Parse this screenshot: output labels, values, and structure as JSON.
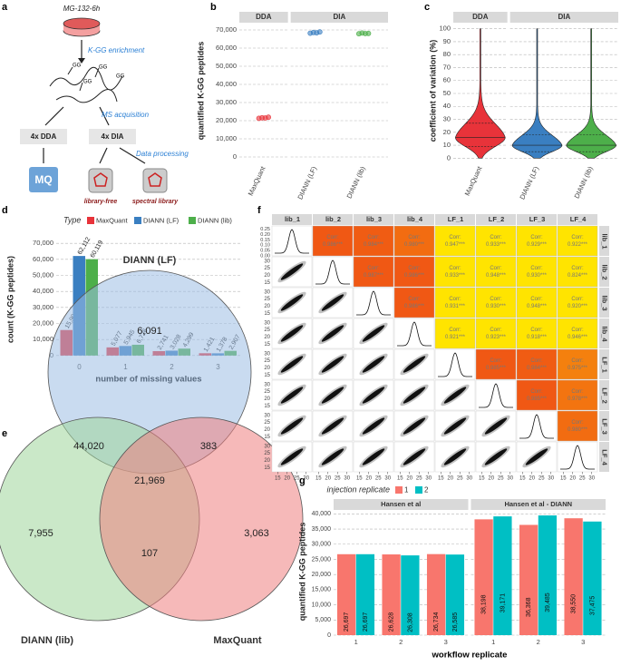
{
  "panel_labels": [
    "a",
    "b",
    "c",
    "d",
    "e",
    "f",
    "g"
  ],
  "workflow": {
    "sample": "MG-132-6h",
    "enrichment": "K-GG enrichment",
    "gg_tag": "GG",
    "acquisition": "MS acquisition",
    "dda": "4x DDA",
    "dia": "4x DIA",
    "processing": "Data processing",
    "mq_logo": "MQ",
    "library_free": "library-free",
    "spectral_library": "spectral library"
  },
  "chart_data": [
    {
      "type": "dot",
      "y_label": "quantified K-GG peptides",
      "ylim": [
        -3500,
        73500
      ],
      "yticks": [
        0,
        {
          "value": 10000,
          "label": "10,000"
        },
        {
          "value": 20000,
          "label": "20,000"
        },
        {
          "value": 30000,
          "label": "30,000"
        },
        {
          "value": 40000,
          "label": "40,000"
        },
        {
          "value": 50000,
          "label": "50,000"
        },
        {
          "value": 60000,
          "label": "60,000"
        },
        {
          "value": 70000,
          "label": "70,000"
        }
      ],
      "grid": true,
      "facets": [
        {
          "name": "DDA",
          "categories": [
            "MaxQuant"
          ],
          "colors": [
            "#e8333a"
          ],
          "values": [
            [
              21300,
              21600,
              21500,
              21900
            ]
          ]
        },
        {
          "name": "DIA",
          "categories": [
            "DIANN (LF)",
            "DIANN (lib)"
          ],
          "colors": [
            "#3a7fc1",
            "#4daf4a"
          ],
          "values": [
            [
              68200,
              68600,
              68400,
              68900
            ],
            [
              67900,
              68300,
              68000,
              68100
            ]
          ]
        }
      ]
    },
    {
      "type": "violin",
      "y_label": "coefficient of variation (%)",
      "ylim": [
        -4,
        104
      ],
      "yticks": [
        0,
        10,
        20,
        30,
        40,
        50,
        60,
        70,
        80,
        90,
        100
      ],
      "grid": true,
      "facets": [
        {
          "name": "DDA",
          "categories": [
            "MaxQuant"
          ],
          "colors": [
            "#e8333a"
          ],
          "stats": [
            {
              "min": 0,
              "q1": 9,
              "median": 16,
              "q3": 27,
              "max": 100
            }
          ]
        },
        {
          "name": "DIA",
          "categories": [
            "DIANN (LF)",
            "DIANN (lib)"
          ],
          "colors": [
            "#3a7fc1",
            "#4daf4a"
          ],
          "stats": [
            {
              "min": 0,
              "q1": 5,
              "median": 10,
              "q3": 18,
              "max": 100
            },
            {
              "min": 0,
              "q1": 5,
              "median": 10,
              "q3": 18,
              "max": 100
            }
          ]
        }
      ]
    },
    {
      "type": "bar",
      "y_label": "count (K-GG peptides)",
      "x_label": "number of missing values",
      "legend_title": "Type",
      "categories": [
        "0",
        "1",
        "2",
        "3"
      ],
      "ylim": [
        -3500,
        73500
      ],
      "yticks": [
        0,
        {
          "value": 10000,
          "label": "10,000"
        },
        {
          "value": 20000,
          "label": "20,000"
        },
        {
          "value": 30000,
          "label": "30,000"
        },
        {
          "value": 40000,
          "label": "40,000"
        },
        {
          "value": 50000,
          "label": "50,000"
        },
        {
          "value": 60000,
          "label": "60,000"
        },
        {
          "value": 70000,
          "label": "70,000"
        }
      ],
      "grid": true,
      "series": [
        {
          "name": "MaxQuant",
          "color": "#e8333a",
          "values": [
            15900,
            5077,
            2741,
            1421
          ],
          "value_labels": [
            "15,900",
            "5,077",
            "2,741",
            "1,421"
          ]
        },
        {
          "name": "DIANN (LF)",
          "color": "#3a7fc1",
          "values": [
            62112,
            5945,
            3028,
            1378
          ],
          "value_labels": [
            "62,112",
            "5,945",
            "3,028",
            "1,378"
          ]
        },
        {
          "name": "DIANN (lib)",
          "color": "#4daf4a",
          "values": [
            60119,
            6726,
            4299,
            2907
          ],
          "value_labels": [
            "60,119",
            "6,726",
            "4,299",
            "2,907"
          ]
        }
      ]
    },
    {
      "type": "venn",
      "sets": [
        {
          "name": "DIANN (LF)",
          "color": "#9dbde3"
        },
        {
          "name": "DIANN (lib)",
          "color": "#9fd69a"
        },
        {
          "name": "MaxQuant",
          "color": "#ee8080"
        }
      ],
      "regions": [
        6091,
        44020,
        383,
        21969,
        7955,
        107,
        3063
      ],
      "value_labels": [
        "6,091",
        "44,020",
        "383",
        "21,969",
        "7,955",
        "107",
        "3,063"
      ]
    },
    {
      "type": "correlation_matrix",
      "labels": [
        "lib_1",
        "lib_2",
        "lib_3",
        "lib_4",
        "LF_1",
        "LF_2",
        "LF_3",
        "LF_4"
      ],
      "corr_title": "Corr:",
      "corr": [
        [
          null,
          0.986,
          0.984,
          0.98,
          0.947,
          0.933,
          0.929,
          0.922
        ],
        [
          null,
          null,
          0.987,
          0.986,
          0.933,
          0.948,
          0.93,
          0.824
        ],
        [
          null,
          null,
          null,
          0.986,
          0.931,
          0.93,
          0.948,
          0.92
        ],
        [
          null,
          null,
          null,
          null,
          0.921,
          0.923,
          0.918,
          0.946
        ],
        [
          null,
          null,
          null,
          null,
          null,
          0.985,
          0.984,
          0.975
        ],
        [
          null,
          null,
          null,
          null,
          null,
          null,
          0.985,
          0.978
        ],
        [
          null,
          null,
          null,
          null,
          null,
          null,
          null,
          0.98
        ],
        [
          null,
          null,
          null,
          null,
          null,
          null,
          null,
          null
        ]
      ],
      "corr_labels": [
        [
          null,
          "0.986***",
          "0.984***",
          "0.980***",
          "0.947***",
          "0.933***",
          "0.929***",
          "0.922***"
        ],
        [
          null,
          null,
          "0.987***",
          "0.986***",
          "0.933***",
          "0.948***",
          "0.930***",
          "0.824***"
        ],
        [
          null,
          null,
          null,
          "0.986***",
          "0.931***",
          "0.930***",
          "0.948***",
          "0.920***"
        ],
        [
          null,
          null,
          null,
          null,
          "0.921***",
          "0.923***",
          "0.918***",
          "0.946***"
        ],
        [
          null,
          null,
          null,
          null,
          null,
          "0.985***",
          "0.984***",
          "0.975***"
        ],
        [
          null,
          null,
          null,
          null,
          null,
          null,
          "0.985***",
          "0.978***"
        ],
        [
          null,
          null,
          null,
          null,
          null,
          null,
          null,
          "0.980***"
        ],
        [
          null,
          null,
          null,
          null,
          null,
          null,
          null,
          null
        ]
      ],
      "xlim": [
        12,
        33
      ],
      "xticks": [
        15,
        20,
        25,
        30
      ],
      "density_lim": [
        0,
        0.28
      ],
      "density_ticks": [
        {
          "value": 0,
          "label": "0.00"
        },
        {
          "value": 0.05,
          "label": "0.05"
        },
        {
          "value": 0.1,
          "label": "0.10"
        },
        {
          "value": 0.15,
          "label": "0.15"
        },
        {
          "value": 0.2,
          "label": "0.20"
        },
        {
          "value": 0.25,
          "label": "0.25"
        }
      ]
    },
    {
      "type": "bar",
      "y_label": "quantified K-GG peptides",
      "x_label": "workflow replicate",
      "legend_title": "injection replicate",
      "ylim": [
        0,
        41000
      ],
      "yticks": [
        0,
        {
          "value": 5000,
          "label": "5,000"
        },
        {
          "value": 10000,
          "label": "10,000"
        },
        {
          "value": 15000,
          "label": "15,000"
        },
        {
          "value": 20000,
          "label": "20,000"
        },
        {
          "value": 25000,
          "label": "25,000"
        },
        {
          "value": 30000,
          "label": "30,000"
        },
        {
          "value": 35000,
          "label": "35,000"
        },
        {
          "value": 40000,
          "label": "40,000"
        }
      ],
      "grid": true,
      "series": [
        {
          "name": "1",
          "color": "#f8766d"
        },
        {
          "name": "2",
          "color": "#00bfc4"
        }
      ],
      "facets": [
        {
          "name": "Hansen et al",
          "categories": [
            "1",
            "2",
            "3"
          ],
          "values": [
            [
              26697,
              26628,
              26734
            ],
            [
              26697,
              26308,
              26585
            ]
          ],
          "value_labels": [
            [
              "26,697",
              "26,628",
              "26,734"
            ],
            [
              "26,697",
              "26,308",
              "26,585"
            ]
          ]
        },
        {
          "name": "Hansen et al - DIANN",
          "categories": [
            "1",
            "2",
            "3"
          ],
          "values": [
            [
              38198,
              36368,
              38550
            ],
            [
              39171,
              39485,
              37475
            ]
          ],
          "value_labels": [
            [
              "38,198",
              "36,368",
              "38,550"
            ],
            [
              "39,171",
              "39,485",
              "37,475"
            ]
          ]
        }
      ]
    }
  ]
}
